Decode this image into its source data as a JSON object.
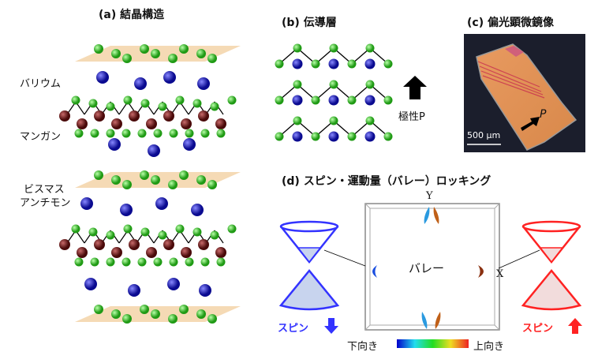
{
  "panel_a": {
    "title": "(a) 結晶構造",
    "labels": [
      "バリウム",
      "マンガン",
      "ビスマス",
      "アンチモン"
    ]
  },
  "panel_b": {
    "title": "(b) 伝導層",
    "polarity": "極性P"
  },
  "panel_c": {
    "title": "(c) 偏光顕微鏡像",
    "scale": "500 μm",
    "arrow_label": "P"
  },
  "panel_d": {
    "title": "(d) スピン・運動量（バレー）ロッキング",
    "valley": "バレー",
    "axis_y": "Y",
    "axis_x": "X",
    "spin_down": "スピン",
    "spin_up": "スピン",
    "colorbar_low": "下向き",
    "colorbar_high": "上向き",
    "colors": {
      "spin_down": "#3333ff",
      "spin_up": "#ff2222"
    }
  },
  "colors": {
    "barium": "#2020c0",
    "manganese": "#7a1c1c",
    "pnictogen": "#33cc22",
    "plane": "#f3d3a8"
  }
}
